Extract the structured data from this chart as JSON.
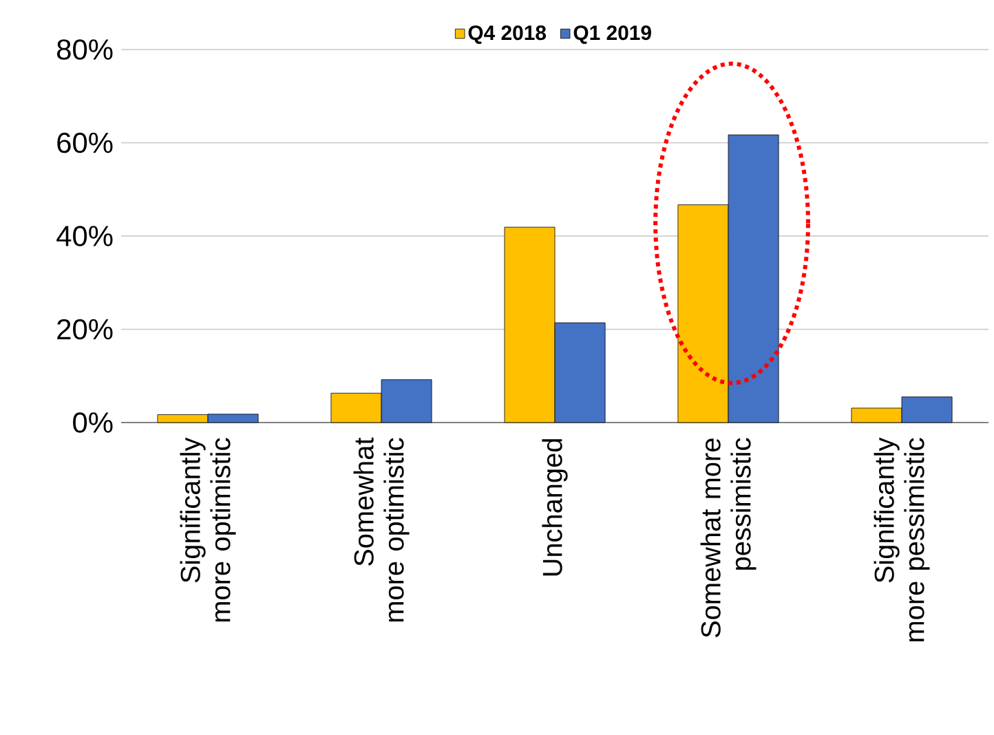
{
  "chart_data": {
    "type": "bar",
    "categories": [
      "Significantly more optimistic",
      "Somewhat more optimistic",
      "Unchanged",
      "Somewhat more pessimistic",
      "Significantly more pessimistic"
    ],
    "series": [
      {
        "name": "Q4 2018",
        "color": "#ffc000",
        "values": [
          1.7,
          6.3,
          41.9,
          46.7,
          3.1
        ]
      },
      {
        "name": "Q1 2019",
        "color": "#4472c4",
        "values": [
          1.8,
          9.2,
          21.4,
          61.7,
          5.5
        ]
      }
    ],
    "ylim": [
      0,
      80
    ],
    "yticks": [
      {
        "value": 0,
        "label": "0%"
      },
      {
        "value": 20,
        "label": "20%"
      },
      {
        "value": 40,
        "label": "40%"
      },
      {
        "value": 60,
        "label": "60%"
      },
      {
        "value": 80,
        "label": "80%"
      }
    ],
    "grid": "y",
    "legend": "top"
  }
}
